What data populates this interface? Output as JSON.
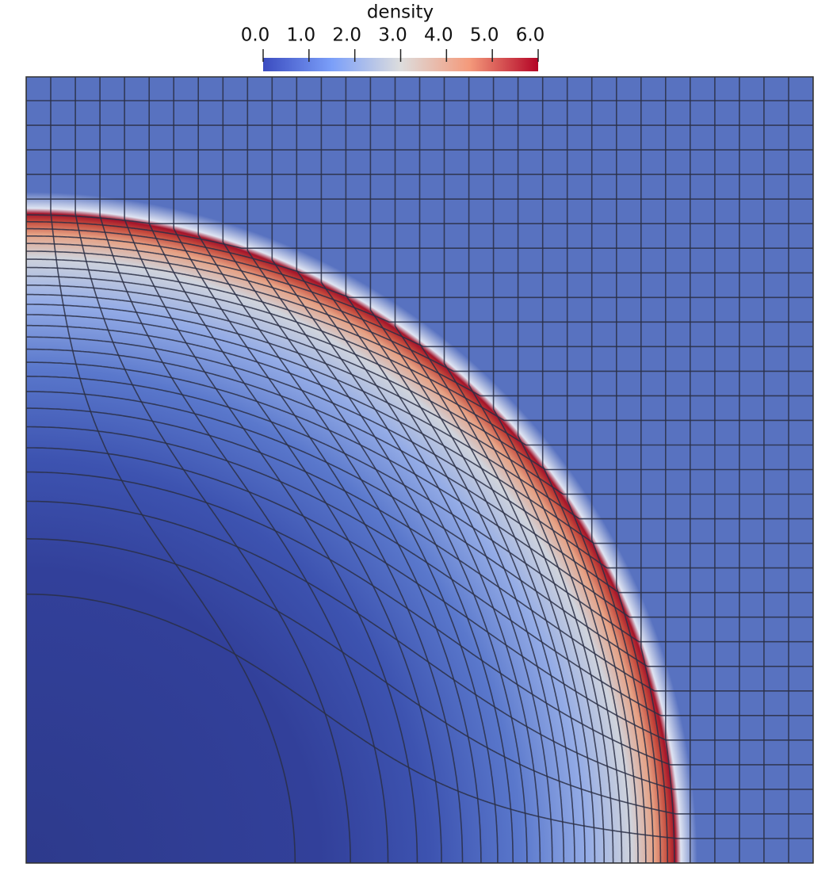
{
  "colorbar": {
    "title": "density",
    "range": [
      0,
      6
    ],
    "ticks": [
      {
        "value": 0,
        "label": "0.0"
      },
      {
        "value": 1,
        "label": "1.0"
      },
      {
        "value": 2,
        "label": "2.0"
      },
      {
        "value": 3,
        "label": "3.0"
      },
      {
        "value": 4,
        "label": "4.0"
      },
      {
        "value": 5,
        "label": "5.0"
      },
      {
        "value": 6,
        "label": "6.0"
      }
    ]
  }
}
